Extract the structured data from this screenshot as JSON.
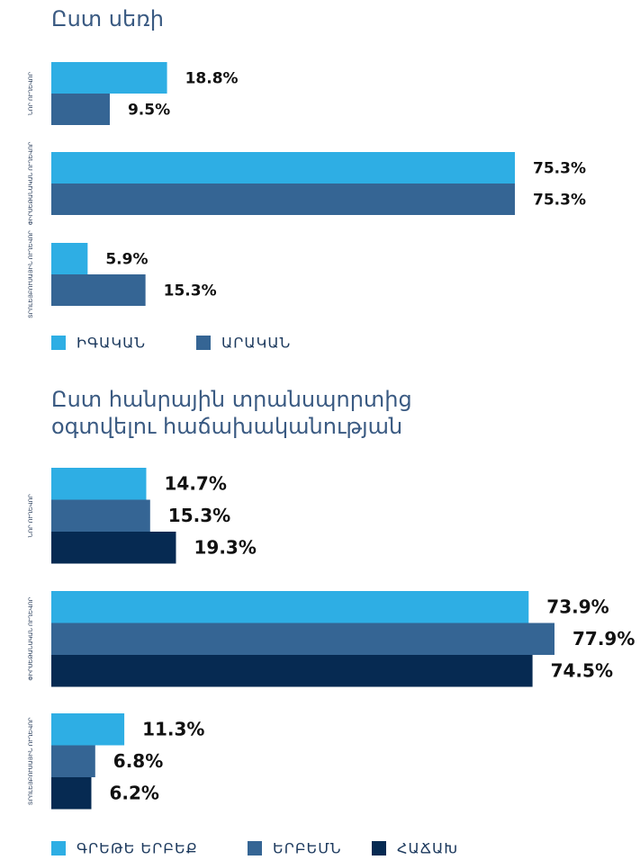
{
  "chart_data": [
    {
      "type": "hbar",
      "title": "Ըստ սեռի",
      "categories": [
        "ՆՈՐ ՈՒՂԵՎՈՐ",
        "ՓԻՐՍԵԹԱՆԱԿԱՆ ՈՒՂԵՎՈՐ",
        "ՏՐՈԼԵՅԲՈՒՍԱՅԻՆ ՈՒՂԵՎՈՐ"
      ],
      "series": [
        {
          "name": "ԻԳԱԿԱՆ",
          "color": "#2eaee4",
          "values": [
            18.8,
            75.3,
            5.9
          ],
          "value_labels": [
            "18.8%",
            "75.3%",
            "5.9%"
          ]
        },
        {
          "name": "ԱՐԱԿԱՆ",
          "color": "#356594",
          "values": [
            9.5,
            75.3,
            15.3
          ],
          "value_labels": [
            "9.5%",
            "75.3%",
            "15.3%"
          ]
        }
      ]
    },
    {
      "type": "hbar",
      "title": [
        "Ըստ հանրային տրանսպորտից",
        "օգտվելու հաճախականության"
      ],
      "categories": [
        "ՆՈՐ ՈՒՂԵՎՈՐ",
        "ՓԻՐՍԵԹԱՆԱԿԱՆ ՈՒՂԵՎՈՐ",
        "ՏՐՈԼԵՅԲՈՒՍԱՅԻՆ ՈՒՂԵՎՈՐ"
      ],
      "series": [
        {
          "name": "ԳՐԵԹԵ ԵՐԲԵՔ",
          "color": "#2eaee4",
          "values": [
            14.7,
            73.9,
            11.3
          ],
          "value_labels": [
            "14.7%",
            "73.9%",
            "11.3%"
          ]
        },
        {
          "name": "ԵՐԲԵՄՆ",
          "color": "#356594",
          "values": [
            15.3,
            77.9,
            6.8
          ],
          "value_labels": [
            "15.3%",
            "77.9%",
            "6.8%"
          ]
        },
        {
          "name": "ՀԱՃԱԽ",
          "color": "#062a52",
          "values": [
            19.3,
            74.5,
            6.2
          ],
          "value_labels": [
            "19.3%",
            "74.5%",
            "6.2%"
          ]
        }
      ]
    }
  ]
}
